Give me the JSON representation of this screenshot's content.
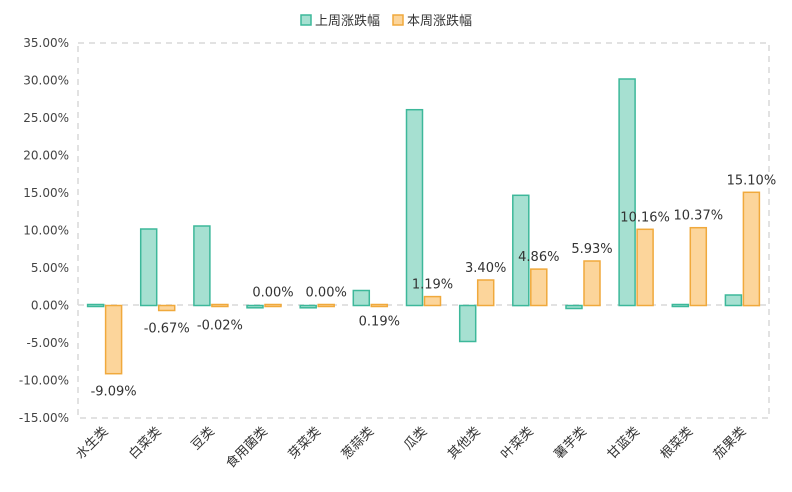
{
  "chart_data": {
    "type": "bar",
    "categories": [
      "水生类",
      "白菜类",
      "豆类",
      "食用菌类",
      "芽菜类",
      "葱蒜类",
      "瓜类",
      "其他类",
      "叶菜类",
      "薯芋类",
      "甘蓝类",
      "根菜类",
      "茄果类"
    ],
    "series": [
      {
        "name": "上周涨跌幅",
        "values": [
          0.0,
          10.2,
          10.6,
          -0.3,
          -0.3,
          2.0,
          26.1,
          -4.8,
          14.7,
          -0.4,
          30.2,
          0.1,
          1.4
        ],
        "labels": [
          "",
          "",
          "",
          "",
          "",
          "",
          "",
          "",
          "",
          "",
          "",
          "",
          ""
        ]
      },
      {
        "name": "本周涨跌幅",
        "values": [
          -9.09,
          -0.67,
          -0.02,
          0.0,
          0.0,
          0.19,
          1.19,
          3.4,
          4.86,
          5.93,
          10.16,
          10.37,
          15.1
        ],
        "labels": [
          "-9.09%",
          "-0.67%",
          "-0.02%",
          "0.00%",
          "0.00%",
          "0.19%",
          "1.19%",
          "3.40%",
          "4.86%",
          "5.93%",
          "10.16%",
          "10.37%",
          "15.10%"
        ]
      }
    ],
    "ylim": [
      -15,
      35
    ],
    "yticks": [
      35,
      30,
      25,
      20,
      15,
      10,
      5,
      0,
      -5,
      -10,
      -15
    ],
    "ytick_labels": [
      "35.00%",
      "30.00%",
      "25.00%",
      "20.00%",
      "15.00%",
      "10.00%",
      "5.00%",
      "0.00%",
      "-5.00%",
      "-10.00%",
      "-15.00%"
    ],
    "legend_position": "top-center",
    "grid": false,
    "colors": {
      "series0_fill": "#a6e0d1",
      "series0_stroke": "#3db89a",
      "series1_fill": "#fcd59b",
      "series1_stroke": "#f0a93c",
      "frame": "#d9d9d9",
      "text": "#333333"
    }
  }
}
